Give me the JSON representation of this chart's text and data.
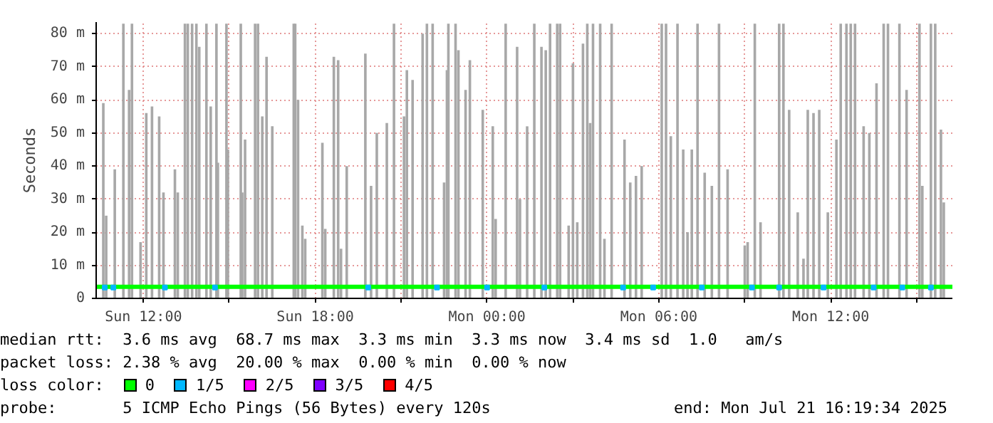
{
  "chart_data": {
    "type": "bar",
    "ylabel": "Seconds",
    "xlim": [
      "2025-07-20T10:21",
      "2025-07-21T16:15"
    ],
    "ylim": [
      0,
      83.5
    ],
    "xticks": [
      {
        "value": "2025-07-20T12:00",
        "label": "Sun 12:00"
      },
      {
        "value": "2025-07-20T15:00",
        "label": null
      },
      {
        "value": "2025-07-20T18:00",
        "label": "Sun 18:00"
      },
      {
        "value": "2025-07-20T21:00",
        "label": null
      },
      {
        "value": "2025-07-21T00:00",
        "label": "Mon 00:00"
      },
      {
        "value": "2025-07-21T03:00",
        "label": null
      },
      {
        "value": "2025-07-21T06:00",
        "label": "Mon 06:00"
      },
      {
        "value": "2025-07-21T09:00",
        "label": null
      },
      {
        "value": "2025-07-21T12:00",
        "label": "Mon 12:00"
      },
      {
        "value": "2025-07-21T15:00",
        "label": null
      }
    ],
    "yticks": [
      0,
      {
        "value": 10,
        "label": "10 m"
      },
      {
        "value": 20,
        "label": "20 m"
      },
      {
        "value": 30,
        "label": "30 m"
      },
      {
        "value": 40,
        "label": "40 m"
      },
      {
        "value": 50,
        "label": "50 m"
      },
      {
        "value": 60,
        "label": "60 m"
      },
      {
        "value": 70,
        "label": "70 m"
      },
      {
        "value": 80,
        "label": "80 m"
      }
    ],
    "grid": true,
    "legend": "bottom",
    "legend_title": "loss color:",
    "x": [
      "2025-07-20T10:36",
      "2025-07-20T10:42",
      "2025-07-20T11:00",
      "2025-07-20T11:18",
      "2025-07-20T11:30",
      "2025-07-20T11:36",
      "2025-07-20T11:54",
      "2025-07-20T12:06",
      "2025-07-20T12:18",
      "2025-07-20T12:33",
      "2025-07-20T12:42",
      "2025-07-20T13:06",
      "2025-07-20T13:12",
      "2025-07-20T13:27",
      "2025-07-20T13:33",
      "2025-07-20T13:42",
      "2025-07-20T13:51",
      "2025-07-20T13:57",
      "2025-07-20T14:12",
      "2025-07-20T14:21",
      "2025-07-20T14:33",
      "2025-07-20T14:36",
      "2025-07-20T14:54",
      "2025-07-20T14:57",
      "2025-07-20T15:24",
      "2025-07-20T15:27",
      "2025-07-20T15:33",
      "2025-07-20T15:54",
      "2025-07-20T16:00",
      "2025-07-20T16:09",
      "2025-07-20T16:18",
      "2025-07-20T16:30",
      "2025-07-20T17:15",
      "2025-07-20T17:18",
      "2025-07-20T17:24",
      "2025-07-20T17:33",
      "2025-07-20T17:39",
      "2025-07-20T18:15",
      "2025-07-20T18:21",
      "2025-07-20T18:39",
      "2025-07-20T18:48",
      "2025-07-20T18:54",
      "2025-07-20T19:06",
      "2025-07-20T19:45",
      "2025-07-20T19:57",
      "2025-07-20T20:09",
      "2025-07-20T20:30",
      "2025-07-20T20:45",
      "2025-07-20T21:06",
      "2025-07-20T21:12",
      "2025-07-20T21:24",
      "2025-07-20T21:45",
      "2025-07-20T21:54",
      "2025-07-20T22:06",
      "2025-07-20T22:30",
      "2025-07-20T22:36",
      "2025-07-20T22:39",
      "2025-07-20T22:54",
      "2025-07-20T23:00",
      "2025-07-20T23:15",
      "2025-07-20T23:24",
      "2025-07-20T23:51",
      "2025-07-21T00:12",
      "2025-07-21T00:18",
      "2025-07-21T00:39",
      "2025-07-21T01:03",
      "2025-07-21T01:09",
      "2025-07-21T01:24",
      "2025-07-21T01:39",
      "2025-07-21T01:54",
      "2025-07-21T02:03",
      "2025-07-21T02:12",
      "2025-07-21T02:27",
      "2025-07-21T02:33",
      "2025-07-21T02:51",
      "2025-07-21T03:00",
      "2025-07-21T03:09",
      "2025-07-21T03:21",
      "2025-07-21T03:30",
      "2025-07-21T03:36",
      "2025-07-21T03:42",
      "2025-07-21T03:57",
      "2025-07-21T04:06",
      "2025-07-21T04:21",
      "2025-07-21T04:48",
      "2025-07-21T05:00",
      "2025-07-21T05:12",
      "2025-07-21T05:24",
      "2025-07-21T06:06",
      "2025-07-21T06:15",
      "2025-07-21T06:25",
      "2025-07-21T06:39",
      "2025-07-21T06:51",
      "2025-07-21T07:00",
      "2025-07-21T07:09",
      "2025-07-21T07:21",
      "2025-07-21T07:36",
      "2025-07-21T07:51",
      "2025-07-21T08:06",
      "2025-07-21T08:24",
      "2025-07-21T09:00",
      "2025-07-21T09:06",
      "2025-07-21T09:21",
      "2025-07-21T09:33",
      "2025-07-21T10:12",
      "2025-07-21T10:21",
      "2025-07-21T10:33",
      "2025-07-21T10:51",
      "2025-07-21T11:03",
      "2025-07-21T11:12",
      "2025-07-21T11:24",
      "2025-07-21T11:36",
      "2025-07-21T11:54",
      "2025-07-21T12:12",
      "2025-07-21T12:21",
      "2025-07-21T12:33",
      "2025-07-21T12:42",
      "2025-07-21T12:51",
      "2025-07-21T13:09",
      "2025-07-21T13:21",
      "2025-07-21T13:36",
      "2025-07-21T13:51",
      "2025-07-21T14:00",
      "2025-07-21T14:24",
      "2025-07-21T14:39",
      "2025-07-21T15:06",
      "2025-07-21T15:12",
      "2025-07-21T15:30",
      "2025-07-21T15:39",
      "2025-07-21T15:51",
      "2025-07-21T15:57"
    ],
    "series": [
      {
        "color": "#a8a8a8",
        "values": [
          59,
          25,
          39,
          83,
          63,
          83,
          17,
          56,
          58,
          55,
          32,
          39,
          32,
          83,
          83,
          83,
          83,
          76,
          83,
          58,
          83,
          41,
          83,
          45,
          83,
          32,
          48,
          83,
          83,
          55,
          73,
          52,
          83,
          83,
          60,
          22,
          18,
          47,
          21,
          73,
          72,
          15,
          40,
          74,
          34,
          50,
          53,
          83,
          55,
          69,
          66,
          80,
          83,
          83,
          35,
          69,
          83,
          83,
          75,
          63,
          72,
          57,
          52,
          24,
          83,
          76,
          30,
          52,
          83,
          76,
          75,
          83,
          83,
          83,
          22,
          71,
          23,
          77,
          83,
          53,
          83,
          83,
          18,
          83,
          48,
          35,
          37,
          40,
          83,
          83,
          49,
          83,
          45,
          20,
          45,
          83,
          38,
          34,
          83,
          39,
          16,
          17,
          83,
          23,
          83,
          83,
          57,
          26,
          12,
          57,
          56,
          57,
          26,
          48,
          83,
          83,
          83,
          83,
          52,
          50,
          65,
          83,
          83,
          83,
          63,
          83,
          34,
          83,
          83,
          51,
          29
        ]
      },
      {
        "name": "0",
        "type": "line",
        "color": "#00ff00",
        "x": [
          "2025-07-20T10:21",
          "2025-07-20T16:00",
          "2025-07-20T22:00",
          "2025-07-21T04:00",
          "2025-07-21T10:00",
          "2025-07-21T16:15"
        ],
        "values": [
          3.5,
          3.5,
          3.5,
          3.5,
          3.5,
          3.5
        ]
      },
      {
        "name": "1/5",
        "type": "scatter",
        "marker": "square",
        "color": "#00b8ff",
        "x": [
          "2025-07-20T10:39",
          "2025-07-20T10:57",
          "2025-07-20T12:45",
          "2025-07-20T14:30",
          "2025-07-20T19:51",
          "2025-07-20T22:15",
          "2025-07-21T00:00",
          "2025-07-21T02:00",
          "2025-07-21T04:45",
          "2025-07-21T05:48",
          "2025-07-21T07:30",
          "2025-07-21T09:15",
          "2025-07-21T10:12",
          "2025-07-21T11:45",
          "2025-07-21T13:30",
          "2025-07-21T14:30",
          "2025-07-21T15:30"
        ],
        "values": [
          3.3,
          3.3,
          3.3,
          3.3,
          3.3,
          3.3,
          3.3,
          3.3,
          3.3,
          3.3,
          3.3,
          3.3,
          3.3,
          3.3,
          3.3,
          3.3,
          3.3
        ]
      },
      {
        "name": "2/5",
        "type": "scatter",
        "marker": "square",
        "color": "#ff00ff",
        "values": [
          null,
          null,
          null,
          null,
          null,
          null,
          null,
          null,
          null,
          null,
          null,
          null,
          null,
          null,
          null,
          null,
          null,
          null,
          null,
          null,
          null,
          null,
          null,
          null,
          null,
          null,
          null,
          null,
          null,
          null,
          null,
          null,
          null,
          null,
          null,
          null,
          null,
          null,
          null,
          null,
          null,
          null,
          null,
          null,
          null,
          null,
          null,
          null,
          null,
          null,
          null,
          null,
          null,
          null,
          null,
          null,
          null,
          null,
          null,
          null,
          null,
          null,
          null,
          null,
          null,
          null,
          null,
          null,
          null,
          null,
          null,
          null,
          null,
          null,
          null,
          null,
          null,
          null,
          null,
          null,
          null,
          null,
          null,
          null,
          null,
          null,
          null,
          null,
          null,
          null,
          null,
          null,
          null,
          null,
          null,
          null,
          null,
          null,
          null,
          null,
          null,
          null,
          null,
          null,
          null,
          null,
          null,
          null,
          null,
          null,
          null,
          null,
          null,
          null,
          null,
          null,
          null,
          null,
          null,
          null,
          null,
          null,
          null,
          null,
          null,
          null,
          null,
          null,
          null,
          null,
          null
        ]
      },
      {
        "name": "3/5",
        "type": "scatter",
        "marker": "square",
        "color": "#7f00ff",
        "values": [
          null,
          null,
          null,
          null,
          null,
          null,
          null,
          null,
          null,
          null,
          null,
          null,
          null,
          null,
          null,
          null,
          null,
          null,
          null,
          null,
          null,
          null,
          null,
          null,
          null,
          null,
          null,
          null,
          null,
          null,
          null,
          null,
          null,
          null,
          null,
          null,
          null,
          null,
          null,
          null,
          null,
          null,
          null,
          null,
          null,
          null,
          null,
          null,
          null,
          null,
          null,
          null,
          null,
          null,
          null,
          null,
          null,
          null,
          null,
          null,
          null,
          null,
          null,
          null,
          null,
          null,
          null,
          null,
          null,
          null,
          null,
          null,
          null,
          null,
          null,
          null,
          null,
          null,
          null,
          null,
          null,
          null,
          null,
          null,
          null,
          null,
          null,
          null,
          null,
          null,
          null,
          null,
          null,
          null,
          null,
          null,
          null,
          null,
          null,
          null,
          null,
          null,
          null,
          null,
          null,
          null,
          null,
          null,
          null,
          null,
          null,
          null,
          null,
          null,
          null,
          null,
          null,
          null,
          null,
          null,
          null,
          null,
          null,
          null,
          null,
          null,
          null,
          null,
          null,
          null,
          null
        ]
      },
      {
        "name": "4/5",
        "type": "scatter",
        "marker": "square",
        "color": "#ff0000",
        "values": [
          null,
          null,
          null,
          null,
          null,
          null,
          null,
          null,
          null,
          null,
          null,
          null,
          null,
          null,
          null,
          null,
          null,
          null,
          null,
          null,
          null,
          null,
          null,
          null,
          null,
          null,
          null,
          null,
          null,
          null,
          null,
          null,
          null,
          null,
          null,
          null,
          null,
          null,
          null,
          null,
          null,
          null,
          null,
          null,
          null,
          null,
          null,
          null,
          null,
          null,
          null,
          null,
          null,
          null,
          null,
          null,
          null,
          null,
          null,
          null,
          null,
          null,
          null,
          null,
          null,
          null,
          null,
          null,
          null,
          null,
          null,
          null,
          null,
          null,
          null,
          null,
          null,
          null,
          null,
          null,
          null,
          null,
          null,
          null,
          null,
          null,
          null,
          null,
          null,
          null,
          null,
          null,
          null,
          null,
          null,
          null,
          null,
          null,
          null,
          null,
          null,
          null,
          null,
          null,
          null,
          null,
          null,
          null,
          null,
          null,
          null,
          null,
          null,
          null,
          null,
          null,
          null,
          null,
          null,
          null,
          null,
          null,
          null,
          null,
          null,
          null,
          null,
          null,
          null,
          null,
          null
        ]
      }
    ],
    "annotations": [
      "median rtt:  3.6 ms avg  68.7 ms max  3.3 ms min  3.3 ms now  3.4 ms sd  1.0   am/s",
      "packet loss: 2.38 % avg  20.00 % max  0.00 % min  0.00 % now",
      "probe:       5 ICMP Echo Pings (56 Bytes) every 120s",
      "end: Mon Jul 21 16:19:34 2025"
    ]
  }
}
